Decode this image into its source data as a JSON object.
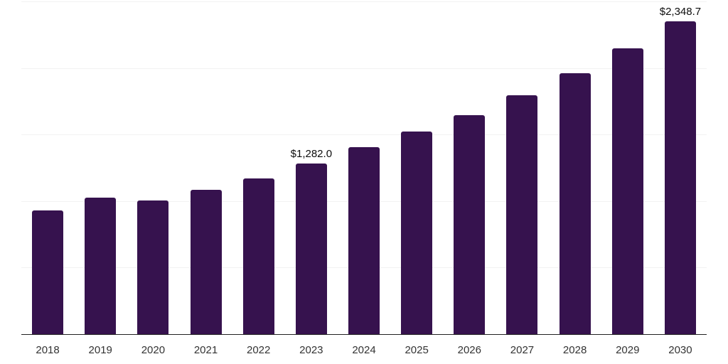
{
  "chart_data": {
    "type": "bar",
    "title": "",
    "xlabel": "",
    "ylabel": "",
    "legend_position": "none",
    "grid": "horizontal",
    "ylim": [
      0,
      2500
    ],
    "gridline_step": 500,
    "categories": [
      "2018",
      "2019",
      "2020",
      "2021",
      "2022",
      "2023",
      "2024",
      "2025",
      "2026",
      "2027",
      "2028",
      "2029",
      "2030"
    ],
    "values": [
      927,
      1028,
      1007,
      1087,
      1172,
      1282.0,
      1403,
      1522,
      1643,
      1797,
      1962,
      2149,
      2348.7
    ],
    "data_labels": {
      "2023": "$1,282.0",
      "2030": "$2,348.7"
    },
    "colors": {
      "bar": "#36124e",
      "gridline": "#f2f2f2",
      "axis_line": "#222222",
      "tick_label": "#333333",
      "data_label": "#0d0d0d",
      "background": "#ffffff"
    }
  }
}
